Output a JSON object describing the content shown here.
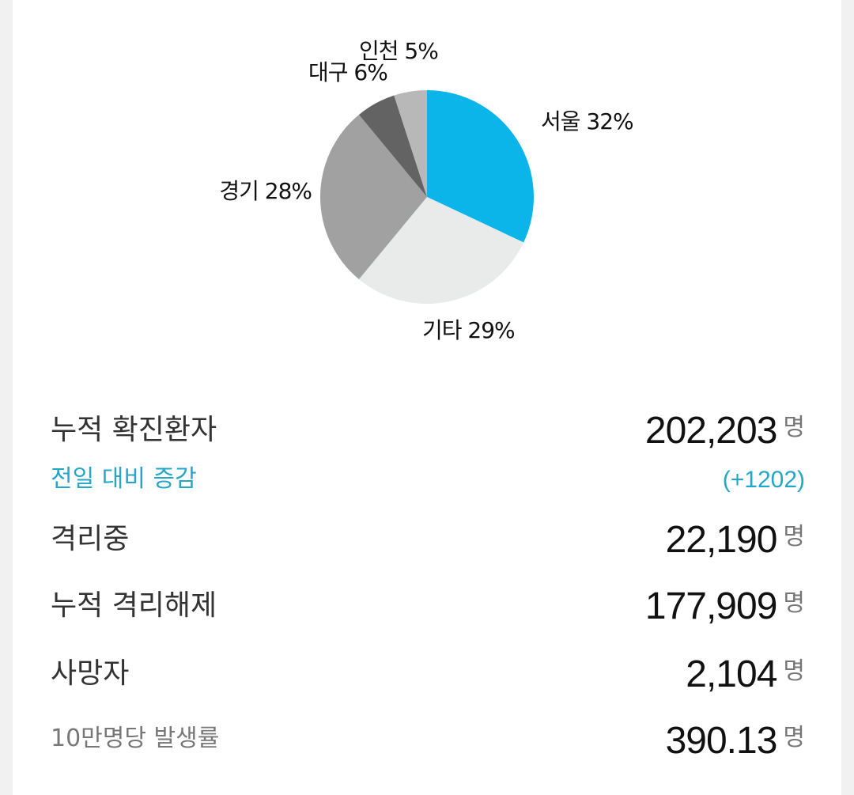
{
  "chart_data": {
    "type": "pie",
    "slices": [
      {
        "name": "서울",
        "value": 32,
        "label": "서울 32%",
        "color": "#0bb5ea"
      },
      {
        "name": "기타",
        "value": 29,
        "label": "기타 29%",
        "color": "#e9eaea"
      },
      {
        "name": "경기",
        "value": 28,
        "label": "경기 28%",
        "color": "#a1a1a1"
      },
      {
        "name": "대구",
        "value": 6,
        "label": "대구 6%",
        "color": "#636363"
      },
      {
        "name": "인천",
        "value": 5,
        "label": "인천 5%",
        "color": "#b8b8b8"
      }
    ]
  },
  "stats": {
    "cumulative_confirmed": {
      "label": "누적 확진환자",
      "value": "202,203",
      "unit": "명"
    },
    "daily_change": {
      "label": "전일 대비 증감",
      "value": "(+1202)"
    },
    "in_isolation": {
      "label": "격리중",
      "value": "22,190",
      "unit": "명"
    },
    "cumulative_released": {
      "label": "누적 격리해제",
      "value": "177,909",
      "unit": "명"
    },
    "deaths": {
      "label": "사망자",
      "value": "2,104",
      "unit": "명"
    },
    "incidence_per_100k": {
      "label": "10만명당 발생률",
      "value": "390.13",
      "unit": "명"
    }
  },
  "colors": {
    "accent": "#23a6c8",
    "seoul": "#0bb5ea"
  }
}
